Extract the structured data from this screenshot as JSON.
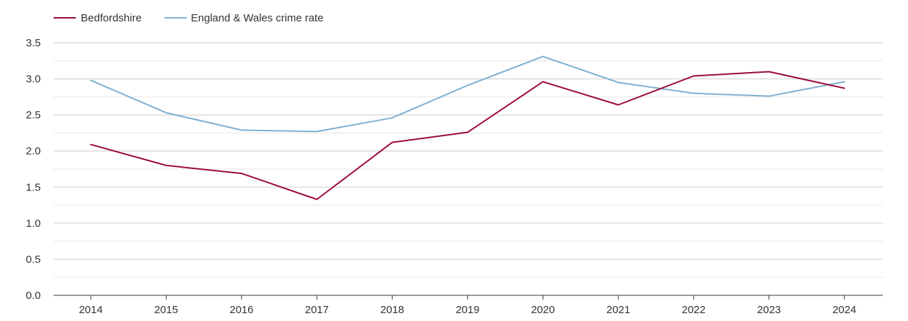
{
  "chart_data": {
    "type": "line",
    "title": "",
    "xlabel": "",
    "ylabel": "",
    "ylim": [
      0,
      3.5
    ],
    "yticks": [
      "0.0",
      "0.5",
      "1.0",
      "1.5",
      "2.0",
      "2.5",
      "3.0",
      "3.5"
    ],
    "x": [
      "2014",
      "2015",
      "2016",
      "2017",
      "2018",
      "2019",
      "2020",
      "2021",
      "2022",
      "2023",
      "2024"
    ],
    "grid": true,
    "legend_position": "top-left",
    "series": [
      {
        "name": "Bedfordshire",
        "color": "#9b0b3a",
        "values": [
          2.09,
          1.8,
          1.69,
          1.33,
          2.12,
          2.26,
          2.96,
          2.64,
          3.04,
          3.1,
          2.87
        ]
      },
      {
        "name": "England & Wales crime rate",
        "color": "#7fb0d0",
        "values": [
          2.98,
          2.53,
          2.29,
          2.27,
          2.46,
          2.91,
          3.31,
          2.95,
          2.8,
          2.76,
          2.96
        ]
      }
    ]
  },
  "colors": {
    "grid_major": "#cccccc",
    "grid_minor": "#e6e6e6",
    "axis": "#333333"
  }
}
